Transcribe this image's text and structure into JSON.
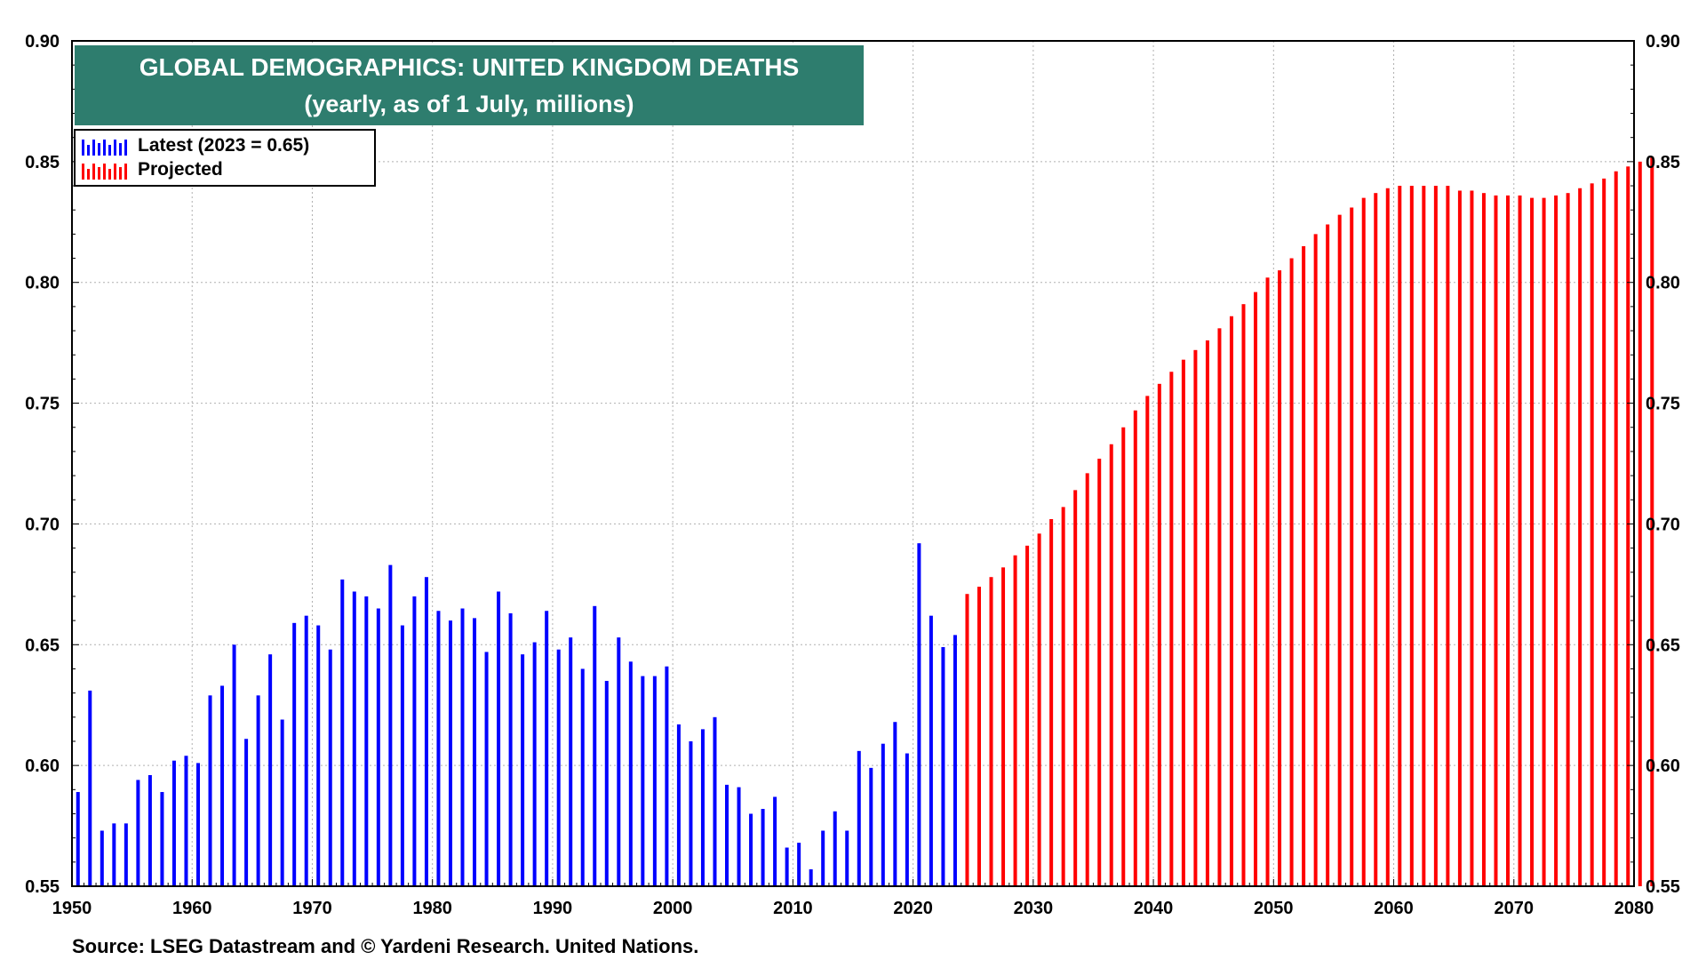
{
  "chart_data": {
    "type": "bar",
    "title": "GLOBAL DEMOGRAPHICS: UNITED KINGDOM DEATHS",
    "subtitle": "(yearly, as of 1 July, millions)",
    "xlabel": "",
    "ylabel": "",
    "xlim": [
      1950,
      2080
    ],
    "ylim": [
      0.55,
      0.9
    ],
    "y_ticks": [
      "0.90",
      "0.85",
      "0.80",
      "0.75",
      "0.70",
      "0.65",
      "0.60",
      "0.55"
    ],
    "x_ticks": [
      "1950",
      "1960",
      "1970",
      "1980",
      "1990",
      "2000",
      "2010",
      "2020",
      "2030",
      "2040",
      "2050",
      "2060",
      "2070",
      "2080"
    ],
    "grid": true,
    "legend_position": "top-left",
    "series": [
      {
        "name": "Latest (2023 = 0.65)",
        "color": "#0000ff",
        "start_year": 1950,
        "values": [
          0.589,
          0.631,
          0.573,
          0.576,
          0.576,
          0.594,
          0.596,
          0.589,
          0.602,
          0.604,
          0.601,
          0.629,
          0.633,
          0.65,
          0.611,
          0.629,
          0.646,
          0.619,
          0.659,
          0.662,
          0.658,
          0.648,
          0.677,
          0.672,
          0.67,
          0.665,
          0.683,
          0.658,
          0.67,
          0.678,
          0.664,
          0.66,
          0.665,
          0.661,
          0.647,
          0.672,
          0.663,
          0.646,
          0.651,
          0.664,
          0.648,
          0.653,
          0.64,
          0.666,
          0.635,
          0.653,
          0.643,
          0.637,
          0.637,
          0.641,
          0.617,
          0.61,
          0.615,
          0.62,
          0.592,
          0.591,
          0.58,
          0.582,
          0.587,
          0.566,
          0.568,
          0.557,
          0.573,
          0.581,
          0.573,
          0.606,
          0.599,
          0.609,
          0.618,
          0.605,
          0.692,
          0.662,
          0.649,
          0.654
        ]
      },
      {
        "name": "Projected",
        "color": "#ff0000",
        "start_year": 2024,
        "values": [
          0.671,
          0.674,
          0.678,
          0.682,
          0.687,
          0.691,
          0.696,
          0.702,
          0.707,
          0.714,
          0.721,
          0.727,
          0.733,
          0.74,
          0.747,
          0.753,
          0.758,
          0.763,
          0.768,
          0.772,
          0.776,
          0.781,
          0.786,
          0.791,
          0.796,
          0.802,
          0.805,
          0.81,
          0.815,
          0.82,
          0.824,
          0.828,
          0.831,
          0.835,
          0.837,
          0.839,
          0.84,
          0.84,
          0.84,
          0.84,
          0.84,
          0.838,
          0.838,
          0.837,
          0.836,
          0.836,
          0.836,
          0.835,
          0.835,
          0.836,
          0.837,
          0.839,
          0.841,
          0.843,
          0.846,
          0.848,
          0.85,
          0.852
        ]
      }
    ]
  },
  "source": "Source: LSEG Datastream and © Yardeni Research. United Nations."
}
